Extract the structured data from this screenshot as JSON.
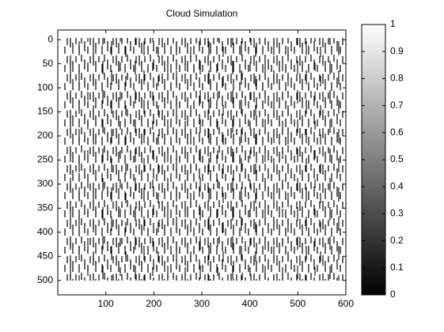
{
  "chart_data": {
    "type": "image",
    "title": "Cloud Simulation",
    "xlim": [
      0,
      600
    ],
    "xticks": [
      100,
      200,
      300,
      400,
      500,
      600
    ],
    "ylim": [
      -20,
      530
    ],
    "yticks": [
      0,
      50,
      100,
      150,
      200,
      250,
      300,
      350,
      400,
      450,
      500
    ],
    "y_reversed": true,
    "colormap": [
      "#000000",
      "#ffffff"
    ],
    "colorbar": {
      "ylim": [
        0,
        1
      ],
      "yticks": [
        0,
        0.1,
        0.2,
        0.3,
        0.4,
        0.5,
        0.6,
        0.7,
        0.8,
        0.9,
        1
      ]
    }
  }
}
